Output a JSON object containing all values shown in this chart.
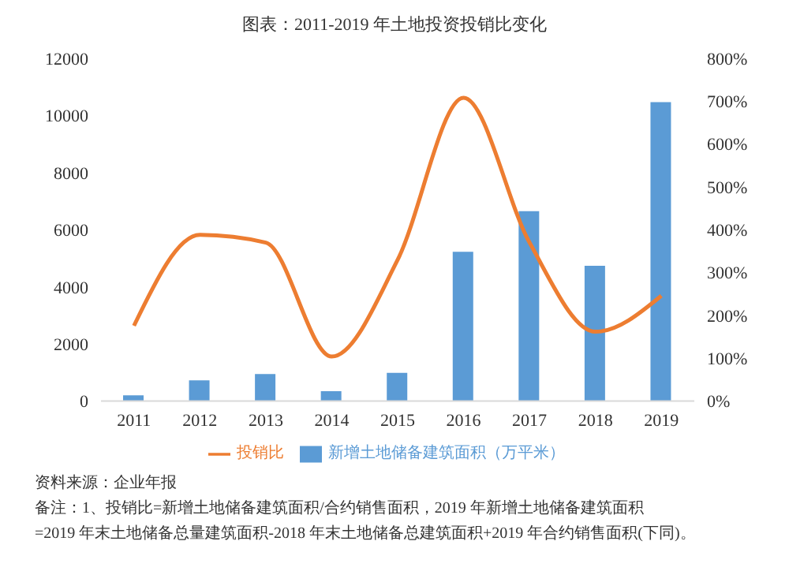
{
  "chart_data": {
    "type": "bar",
    "title": "图表：2011-2019 年土地投资投销比变化",
    "categories": [
      "2011",
      "2012",
      "2013",
      "2014",
      "2015",
      "2016",
      "2017",
      "2018",
      "2019"
    ],
    "series": [
      {
        "name": "新增土地储备建筑面积（万平米）",
        "color": "#5b9bd5",
        "values": [
          200,
          730,
          950,
          350,
          990,
          5230,
          6650,
          4740,
          10470
        ]
      },
      {
        "name": "投销比",
        "type": "line",
        "axis": "y2",
        "color": "#ed7d31",
        "values": [
          176,
          388,
          370,
          104,
          330,
          708,
          370,
          162,
          246
        ]
      }
    ],
    "ylim": [
      0,
      12000
    ],
    "yticks": [
      0,
      2000,
      4000,
      6000,
      8000,
      10000,
      12000
    ],
    "y2lim": [
      0,
      800
    ],
    "y2ticks": [
      {
        "value": 0,
        "label": "0%"
      },
      {
        "value": 100,
        "label": "100%"
      },
      {
        "value": 200,
        "label": "200%"
      },
      {
        "value": 300,
        "label": "300%"
      },
      {
        "value": 400,
        "label": "400%"
      },
      {
        "value": 500,
        "label": "500%"
      },
      {
        "value": 600,
        "label": "600%"
      },
      {
        "value": 700,
        "label": "700%"
      },
      {
        "value": 800,
        "label": "800%"
      }
    ],
    "legend": "bottom",
    "grid": false,
    "marker": "none",
    "line_style": "solid",
    "annotations": [
      "资料来源：企业年报",
      "备注：1、投销比=新增土地储备建筑面积/合约销售面积，2019 年新增土地储备建筑面积",
      "=2019 年末土地储备总量建筑面积-2018 年末土地储备总建筑面积+2019 年合约销售面积(下同)。"
    ]
  }
}
